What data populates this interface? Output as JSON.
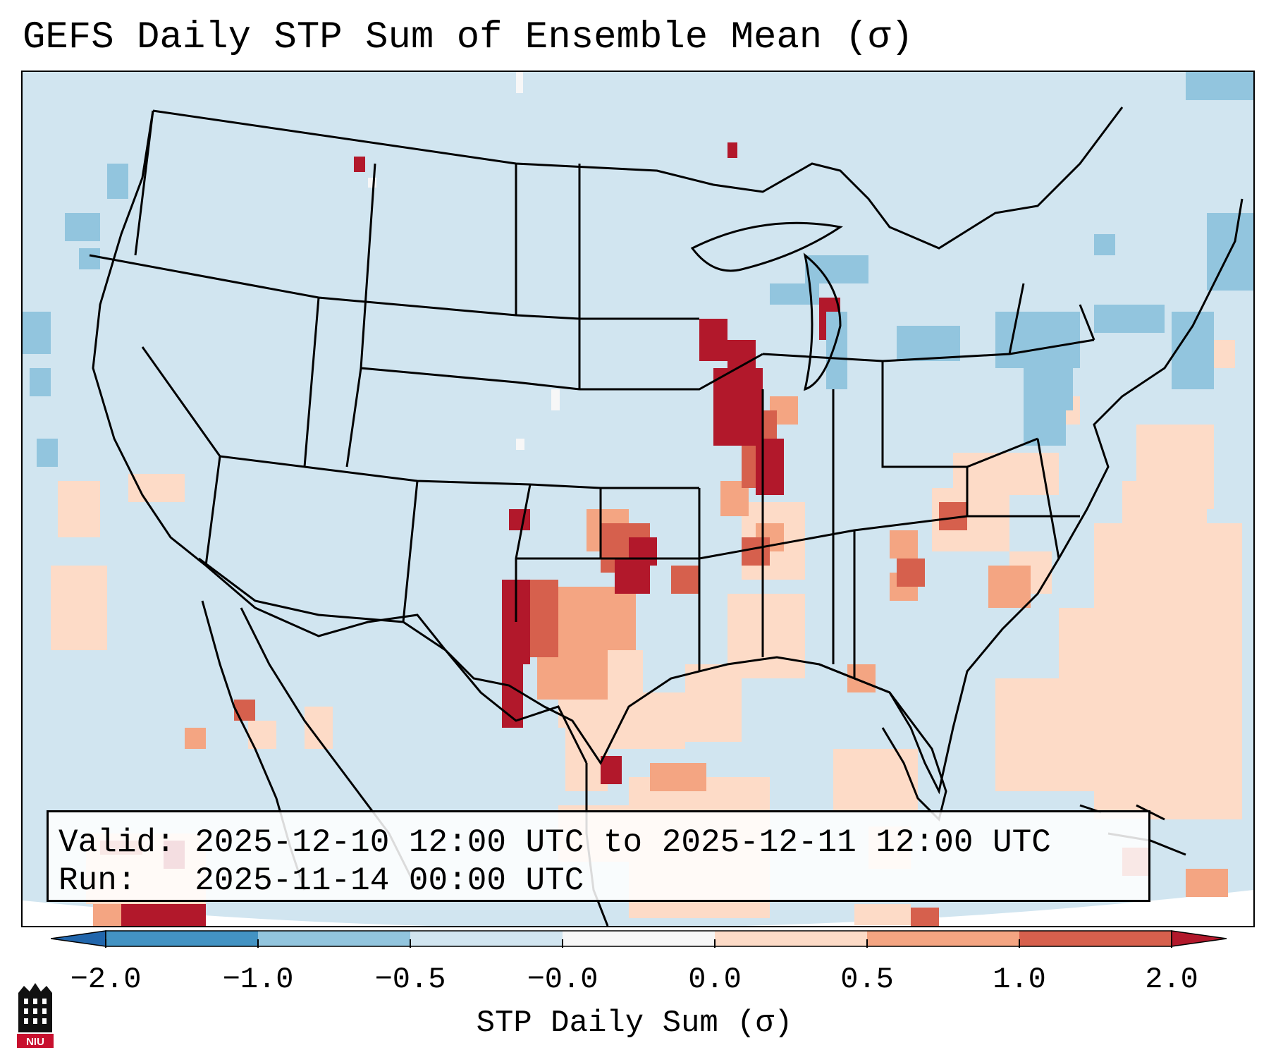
{
  "title": "GEFS Daily STP Sum of Ensemble Mean (σ)",
  "info": {
    "valid_label": "Valid:",
    "valid_value": "2025-12-10 12:00 UTC to 2025-12-11 12:00 UTC",
    "run_label": "Run:",
    "run_value": "2025-11-14 00:00 UTC"
  },
  "colorbar": {
    "label": "STP Daily Sum (σ)",
    "ticks": [
      "−2.0",
      "−1.0",
      "−0.5",
      "−0.0",
      "0.0",
      "0.5",
      "1.0",
      "2.0"
    ],
    "bins": [
      {
        "range": "< -2.0",
        "color": "#2166ac"
      },
      {
        "range": "-2.0 to -1.0",
        "color": "#4393c3"
      },
      {
        "range": "-1.0 to -0.5",
        "color": "#92c5de"
      },
      {
        "range": "-0.5 to 0.0",
        "color": "#d1e5f0"
      },
      {
        "range": "0.0 (neutral)",
        "color": "#f7f7f7"
      },
      {
        "range": "0.0 to 0.5",
        "color": "#fddbc7"
      },
      {
        "range": "0.5 to 1.0",
        "color": "#f4a582"
      },
      {
        "range": "1.0 to 2.0",
        "color": "#d6604d"
      },
      {
        "range": "> 2.0",
        "color": "#b2182b"
      }
    ]
  },
  "map": {
    "background_color": "#d1e5f0",
    "land_border_color": "#000000",
    "highlight_regions": [
      {
        "region": "Upper Mississippi Valley / Iowa-Wisconsin",
        "level": "> 2.0"
      },
      {
        "region": "Eastern New Mexico / West Texas",
        "level": "> 2.0"
      },
      {
        "region": "Oklahoma / Kansas",
        "level": "1.0 to 2.0"
      },
      {
        "region": "Texas / Lower Mississippi Valley",
        "level": "0.0 to 0.5"
      },
      {
        "region": "Great Lakes / Northeast",
        "level": "-1.0 to -0.5"
      }
    ]
  },
  "logo": {
    "text": "NIU",
    "icon": "university-logo-icon"
  }
}
